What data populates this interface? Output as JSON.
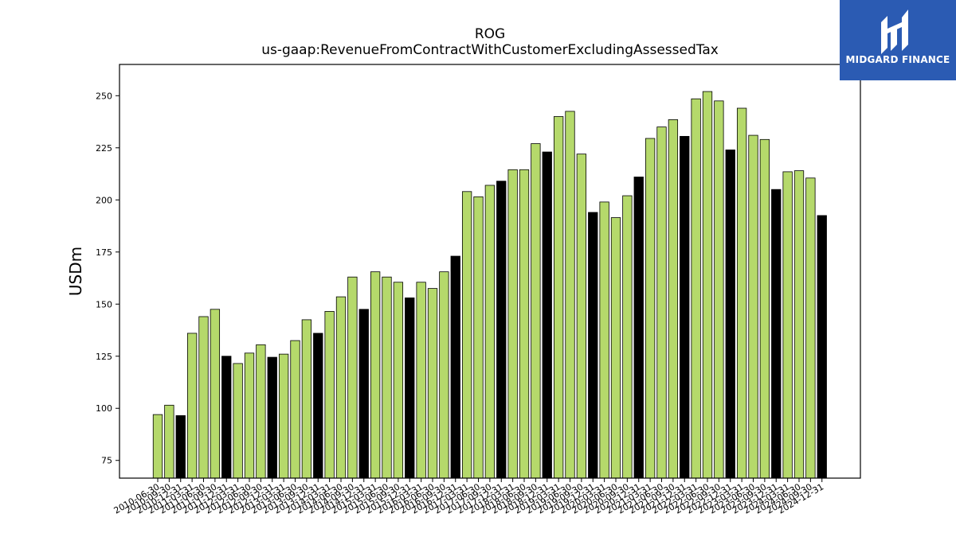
{
  "chart_data": {
    "type": "bar",
    "title": "ROG",
    "subtitle": "us-gaap:RevenueFromContractWithCustomerExcludingAssessedTax",
    "xlabel": "",
    "ylabel": "USDm",
    "ylim": [
      66.5,
      265
    ],
    "yticks": [
      75,
      100,
      125,
      150,
      175,
      200,
      225,
      250
    ],
    "grid": false,
    "colors": {
      "quarter": "#b5d96b",
      "annual": "#000000",
      "edge": "#000000"
    },
    "categories": [
      "2010-06-30",
      "2010-09-30",
      "2010-12-31",
      "2011-03-31",
      "2011-06-30",
      "2011-09-30",
      "2011-12-31",
      "2012-03-31",
      "2012-06-30",
      "2012-09-30",
      "2012-12-31",
      "2013-03-31",
      "2013-06-30",
      "2013-09-30",
      "2013-12-31",
      "2014-03-31",
      "2014-06-30",
      "2014-09-30",
      "2014-12-31",
      "2015-03-31",
      "2015-06-30",
      "2015-09-30",
      "2015-12-31",
      "2016-03-31",
      "2016-06-30",
      "2016-09-30",
      "2016-12-31",
      "2017-03-31",
      "2017-06-30",
      "2017-09-30",
      "2017-12-31",
      "2018-03-31",
      "2018-06-30",
      "2018-09-30",
      "2018-12-31",
      "2019-03-31",
      "2019-06-30",
      "2019-09-30",
      "2019-12-31",
      "2020-03-31",
      "2020-06-30",
      "2020-09-30",
      "2020-12-31",
      "2021-03-31",
      "2021-06-30",
      "2021-09-30",
      "2021-12-31",
      "2022-03-31",
      "2022-06-30",
      "2022-09-30",
      "2022-12-31",
      "2023-03-31",
      "2023-06-30",
      "2023-09-30",
      "2023-12-31",
      "2024-03-31",
      "2024-06-30",
      "2024-09-30",
      "2024-12-31"
    ],
    "tick_labels": [
      "2010-06-30",
      "2010-09-30",
      "2010-12-31",
      "2011-03-31",
      "2011-06-30",
      "2011-09-30",
      "2011-12-31",
      "2012-03-31",
      "2012-06-30",
      "2012-09-30",
      "2012-12-31",
      "2013-03-31",
      "2013-06-30",
      "2013-09-30",
      "2013-12-31",
      "2014-03-31",
      "2014-06-30",
      "2014-09-30",
      "2014-12-31",
      "2015-03-31",
      "2015-06-30",
      "2015-09-30",
      "2015-12-31",
      "2016-03-31",
      "2016-06-30",
      "2016-09-30",
      "2016-12-31",
      "2017-03-31",
      "2017-06-30",
      "2017-09-30",
      "2017-12-31",
      "2018-03-31",
      "2018-06-30",
      "2018-09-30",
      "2018-12-31",
      "2019-03-31",
      "2019-06-30",
      "2019-09-30",
      "2019-12-31",
      "2020-03-31",
      "2020-06-30",
      "2020-09-30",
      "2020-12-31",
      "2021-03-31",
      "2021-06-30",
      "2021-09-30",
      "2021-12-31",
      "2022-03-31",
      "2022-06-30",
      "2022-09-30",
      "2022-12-31",
      "2023-03-31",
      "2023-06-30",
      "2023-09-30",
      "2023-12-31",
      "2024-03-31",
      "2024-06-30",
      "2024-09-30",
      "2024-12-31"
    ],
    "values": [
      97,
      101.5,
      96.5,
      136,
      144,
      147.5,
      125,
      121.5,
      126.5,
      130.5,
      124.5,
      126,
      132.5,
      142.5,
      136,
      146.5,
      153.5,
      163,
      147.5,
      165.5,
      163,
      160.5,
      153,
      160.5,
      157.5,
      165.5,
      173,
      204,
      201.5,
      207,
      209,
      214.5,
      214.5,
      227,
      223,
      240,
      242.5,
      222,
      194,
      199,
      191.5,
      202,
      211,
      229.5,
      235,
      238.5,
      230.5,
      248.5,
      252,
      247.5,
      224,
      244,
      231,
      229,
      205,
      213.5,
      214,
      210.5,
      192.5
    ],
    "annual": [
      false,
      false,
      true,
      false,
      false,
      false,
      true,
      false,
      false,
      false,
      true,
      false,
      false,
      false,
      true,
      false,
      false,
      false,
      true,
      false,
      false,
      false,
      true,
      false,
      false,
      false,
      true,
      false,
      false,
      false,
      true,
      false,
      false,
      false,
      true,
      false,
      false,
      false,
      true,
      false,
      false,
      false,
      true,
      false,
      false,
      false,
      true,
      false,
      false,
      false,
      true,
      false,
      false,
      false,
      true,
      false,
      false,
      false,
      true
    ]
  },
  "logo": {
    "text": "MIDGARD FINANCE"
  }
}
